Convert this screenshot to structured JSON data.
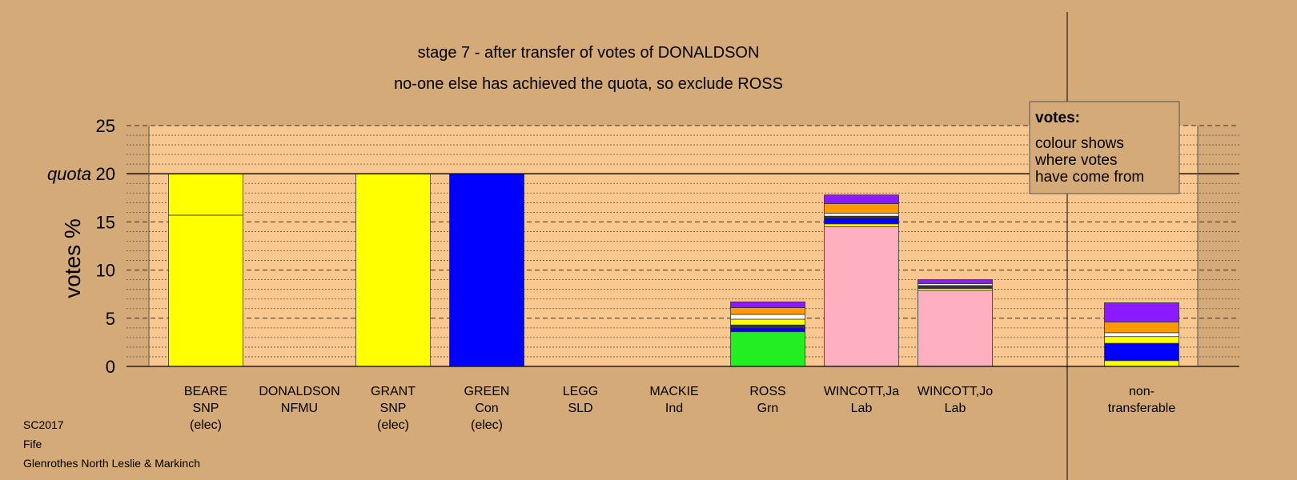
{
  "chart_data": {
    "type": "bar",
    "stacked": true,
    "title": "stage 7 - after transfer of votes of DONALDSON",
    "subtitle": "no-one else has achieved the quota, so exclude ROSS",
    "ylabel": "votes %",
    "ylim": [
      0,
      25
    ],
    "yticks": [
      0,
      5,
      10,
      15,
      20,
      25
    ],
    "quota": 20,
    "quota_label": "quota",
    "grid": true,
    "legend": {
      "title": "votes:",
      "lines": [
        "colour shows",
        "where votes",
        "have come from"
      ],
      "placement": "top-right"
    },
    "colors": {
      "snp": "#ffff00",
      "con": "#0000ff",
      "grn": "#22ee22",
      "lab": "#ffb0c0",
      "ind": "#ff9900",
      "sld": "#8b1aff",
      "nfmu": "#ffffff",
      "other": "#333333",
      "background": "#d4aa78",
      "plot": "#f8c890"
    },
    "candidates": [
      {
        "name": "BEARE",
        "party": "SNP",
        "status": "(elec)",
        "segments": [
          {
            "value": 15.7,
            "color": "#ffff00"
          },
          {
            "value": 4.3,
            "color": "#ffff00"
          }
        ]
      },
      {
        "name": "DONALDSON",
        "party": "NFMU",
        "status": "",
        "segments": []
      },
      {
        "name": "GRANT",
        "party": "SNP",
        "status": "(elec)",
        "segments": [
          {
            "value": 20.0,
            "color": "#ffff00"
          }
        ]
      },
      {
        "name": "GREEN",
        "party": "Con",
        "status": "(elec)",
        "segments": [
          {
            "value": 20.0,
            "color": "#0000ff"
          }
        ]
      },
      {
        "name": "LEGG",
        "party": "SLD",
        "status": "",
        "segments": []
      },
      {
        "name": "MACKIE",
        "party": "Ind",
        "status": "",
        "segments": []
      },
      {
        "name": "ROSS",
        "party": "Grn",
        "status": "",
        "segments": [
          {
            "value": 3.6,
            "color": "#22ee22"
          },
          {
            "value": 0.4,
            "color": "#0000ff"
          },
          {
            "value": 0.3,
            "color": "#333333"
          },
          {
            "value": 0.6,
            "color": "#ffff00"
          },
          {
            "value": 0.5,
            "color": "#ffffff"
          },
          {
            "value": 0.7,
            "color": "#ff9900"
          },
          {
            "value": 0.6,
            "color": "#8b1aff"
          }
        ]
      },
      {
        "name": "WINCOTT,Ja",
        "party": "Lab",
        "status": "",
        "segments": [
          {
            "value": 14.5,
            "color": "#ffb0c0"
          },
          {
            "value": 0.3,
            "color": "#ffff00"
          },
          {
            "value": 0.6,
            "color": "#0000ff"
          },
          {
            "value": 0.2,
            "color": "#333333"
          },
          {
            "value": 0.3,
            "color": "#ffffff"
          },
          {
            "value": 1.0,
            "color": "#ff9900"
          },
          {
            "value": 0.9,
            "color": "#8b1aff"
          }
        ]
      },
      {
        "name": "WINCOTT,Jo",
        "party": "Lab",
        "status": "",
        "segments": [
          {
            "value": 7.9,
            "color": "#ffb0c0"
          },
          {
            "value": 0.2,
            "color": "#ffff00"
          },
          {
            "value": 0.3,
            "color": "#333333"
          },
          {
            "value": 0.2,
            "color": "#ffffff"
          },
          {
            "value": 0.4,
            "color": "#8b1aff"
          }
        ]
      }
    ],
    "non_transferable": {
      "label_lines": [
        "non-",
        "transferable"
      ],
      "segments": [
        {
          "value": 0.6,
          "color": "#ffff00"
        },
        {
          "value": 1.8,
          "color": "#0000ff"
        },
        {
          "value": 0.7,
          "color": "#ffff00"
        },
        {
          "value": 0.4,
          "color": "#ffffff"
        },
        {
          "value": 1.1,
          "color": "#ff9900"
        },
        {
          "value": 2.0,
          "color": "#8b1aff"
        }
      ]
    }
  },
  "footer": {
    "election": "SC2017",
    "council": "Fife",
    "ward": "Glenrothes North Leslie & Markinch"
  }
}
